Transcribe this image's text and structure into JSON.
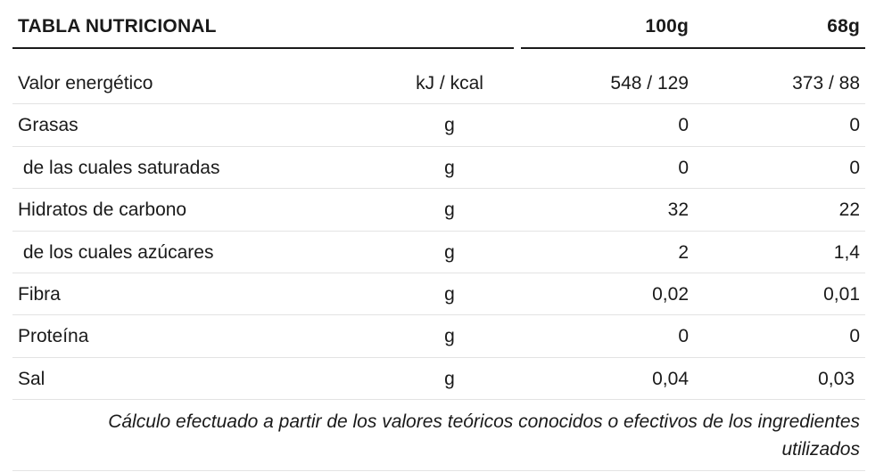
{
  "header": {
    "title": "TABLA NUTRICIONAL",
    "col_100g": "100g",
    "col_68g": "68g"
  },
  "rows": [
    {
      "name": "Valor energético",
      "unit": "kJ / kcal",
      "per_100g": "548 / 129",
      "per_68g": "373 / 88"
    },
    {
      "name": "Grasas",
      "unit": "g",
      "per_100g": "0",
      "per_68g": "0"
    },
    {
      "name": " de las cuales saturadas",
      "unit": "g",
      "per_100g": "0",
      "per_68g": "0"
    },
    {
      "name": "Hidratos de carbono",
      "unit": "g",
      "per_100g": "32",
      "per_68g": "22"
    },
    {
      "name": " de los cuales azúcares",
      "unit": "g",
      "per_100g": "2",
      "per_68g": "1,4"
    },
    {
      "name": "Fibra",
      "unit": "g",
      "per_100g": "0,02",
      "per_68g": "0,01"
    },
    {
      "name": "Proteína",
      "unit": "g",
      "per_100g": "0",
      "per_68g": "0"
    },
    {
      "name": "Sal",
      "unit": "g",
      "per_100g": "0,04",
      "per_68g": "0,03"
    }
  ],
  "footnote": "Cálculo efectuado a partir de los valores teóricos conocidos o efectivos de los ingredientes utilizados",
  "colors": {
    "text": "#1a1a1a",
    "divider": "#e3e3e3",
    "header_rule": "#1a1a1a"
  }
}
